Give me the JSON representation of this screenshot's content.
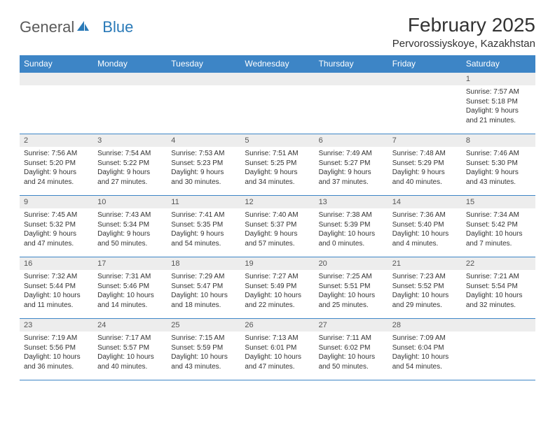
{
  "brand": {
    "part1": "General",
    "part2": "Blue"
  },
  "title": "February 2025",
  "location": "Pervorossiyskoye, Kazakhstan",
  "colors": {
    "header_bg": "#3d85c6",
    "header_text": "#ffffff",
    "daynum_bg": "#ededed",
    "border": "#3d85c6",
    "logo_blue": "#2a7ab8",
    "logo_gray": "#5a5a5a",
    "text": "#333333",
    "background": "#ffffff"
  },
  "weekdays": [
    "Sunday",
    "Monday",
    "Tuesday",
    "Wednesday",
    "Thursday",
    "Friday",
    "Saturday"
  ],
  "weeks": [
    [
      {
        "n": "",
        "lines": []
      },
      {
        "n": "",
        "lines": []
      },
      {
        "n": "",
        "lines": []
      },
      {
        "n": "",
        "lines": []
      },
      {
        "n": "",
        "lines": []
      },
      {
        "n": "",
        "lines": []
      },
      {
        "n": "1",
        "lines": [
          "Sunrise: 7:57 AM",
          "Sunset: 5:18 PM",
          "Daylight: 9 hours and 21 minutes."
        ]
      }
    ],
    [
      {
        "n": "2",
        "lines": [
          "Sunrise: 7:56 AM",
          "Sunset: 5:20 PM",
          "Daylight: 9 hours and 24 minutes."
        ]
      },
      {
        "n": "3",
        "lines": [
          "Sunrise: 7:54 AM",
          "Sunset: 5:22 PM",
          "Daylight: 9 hours and 27 minutes."
        ]
      },
      {
        "n": "4",
        "lines": [
          "Sunrise: 7:53 AM",
          "Sunset: 5:23 PM",
          "Daylight: 9 hours and 30 minutes."
        ]
      },
      {
        "n": "5",
        "lines": [
          "Sunrise: 7:51 AM",
          "Sunset: 5:25 PM",
          "Daylight: 9 hours and 34 minutes."
        ]
      },
      {
        "n": "6",
        "lines": [
          "Sunrise: 7:49 AM",
          "Sunset: 5:27 PM",
          "Daylight: 9 hours and 37 minutes."
        ]
      },
      {
        "n": "7",
        "lines": [
          "Sunrise: 7:48 AM",
          "Sunset: 5:29 PM",
          "Daylight: 9 hours and 40 minutes."
        ]
      },
      {
        "n": "8",
        "lines": [
          "Sunrise: 7:46 AM",
          "Sunset: 5:30 PM",
          "Daylight: 9 hours and 43 minutes."
        ]
      }
    ],
    [
      {
        "n": "9",
        "lines": [
          "Sunrise: 7:45 AM",
          "Sunset: 5:32 PM",
          "Daylight: 9 hours and 47 minutes."
        ]
      },
      {
        "n": "10",
        "lines": [
          "Sunrise: 7:43 AM",
          "Sunset: 5:34 PM",
          "Daylight: 9 hours and 50 minutes."
        ]
      },
      {
        "n": "11",
        "lines": [
          "Sunrise: 7:41 AM",
          "Sunset: 5:35 PM",
          "Daylight: 9 hours and 54 minutes."
        ]
      },
      {
        "n": "12",
        "lines": [
          "Sunrise: 7:40 AM",
          "Sunset: 5:37 PM",
          "Daylight: 9 hours and 57 minutes."
        ]
      },
      {
        "n": "13",
        "lines": [
          "Sunrise: 7:38 AM",
          "Sunset: 5:39 PM",
          "Daylight: 10 hours and 0 minutes."
        ]
      },
      {
        "n": "14",
        "lines": [
          "Sunrise: 7:36 AM",
          "Sunset: 5:40 PM",
          "Daylight: 10 hours and 4 minutes."
        ]
      },
      {
        "n": "15",
        "lines": [
          "Sunrise: 7:34 AM",
          "Sunset: 5:42 PM",
          "Daylight: 10 hours and 7 minutes."
        ]
      }
    ],
    [
      {
        "n": "16",
        "lines": [
          "Sunrise: 7:32 AM",
          "Sunset: 5:44 PM",
          "Daylight: 10 hours and 11 minutes."
        ]
      },
      {
        "n": "17",
        "lines": [
          "Sunrise: 7:31 AM",
          "Sunset: 5:46 PM",
          "Daylight: 10 hours and 14 minutes."
        ]
      },
      {
        "n": "18",
        "lines": [
          "Sunrise: 7:29 AM",
          "Sunset: 5:47 PM",
          "Daylight: 10 hours and 18 minutes."
        ]
      },
      {
        "n": "19",
        "lines": [
          "Sunrise: 7:27 AM",
          "Sunset: 5:49 PM",
          "Daylight: 10 hours and 22 minutes."
        ]
      },
      {
        "n": "20",
        "lines": [
          "Sunrise: 7:25 AM",
          "Sunset: 5:51 PM",
          "Daylight: 10 hours and 25 minutes."
        ]
      },
      {
        "n": "21",
        "lines": [
          "Sunrise: 7:23 AM",
          "Sunset: 5:52 PM",
          "Daylight: 10 hours and 29 minutes."
        ]
      },
      {
        "n": "22",
        "lines": [
          "Sunrise: 7:21 AM",
          "Sunset: 5:54 PM",
          "Daylight: 10 hours and 32 minutes."
        ]
      }
    ],
    [
      {
        "n": "23",
        "lines": [
          "Sunrise: 7:19 AM",
          "Sunset: 5:56 PM",
          "Daylight: 10 hours and 36 minutes."
        ]
      },
      {
        "n": "24",
        "lines": [
          "Sunrise: 7:17 AM",
          "Sunset: 5:57 PM",
          "Daylight: 10 hours and 40 minutes."
        ]
      },
      {
        "n": "25",
        "lines": [
          "Sunrise: 7:15 AM",
          "Sunset: 5:59 PM",
          "Daylight: 10 hours and 43 minutes."
        ]
      },
      {
        "n": "26",
        "lines": [
          "Sunrise: 7:13 AM",
          "Sunset: 6:01 PM",
          "Daylight: 10 hours and 47 minutes."
        ]
      },
      {
        "n": "27",
        "lines": [
          "Sunrise: 7:11 AM",
          "Sunset: 6:02 PM",
          "Daylight: 10 hours and 50 minutes."
        ]
      },
      {
        "n": "28",
        "lines": [
          "Sunrise: 7:09 AM",
          "Sunset: 6:04 PM",
          "Daylight: 10 hours and 54 minutes."
        ]
      },
      {
        "n": "",
        "lines": []
      }
    ]
  ]
}
